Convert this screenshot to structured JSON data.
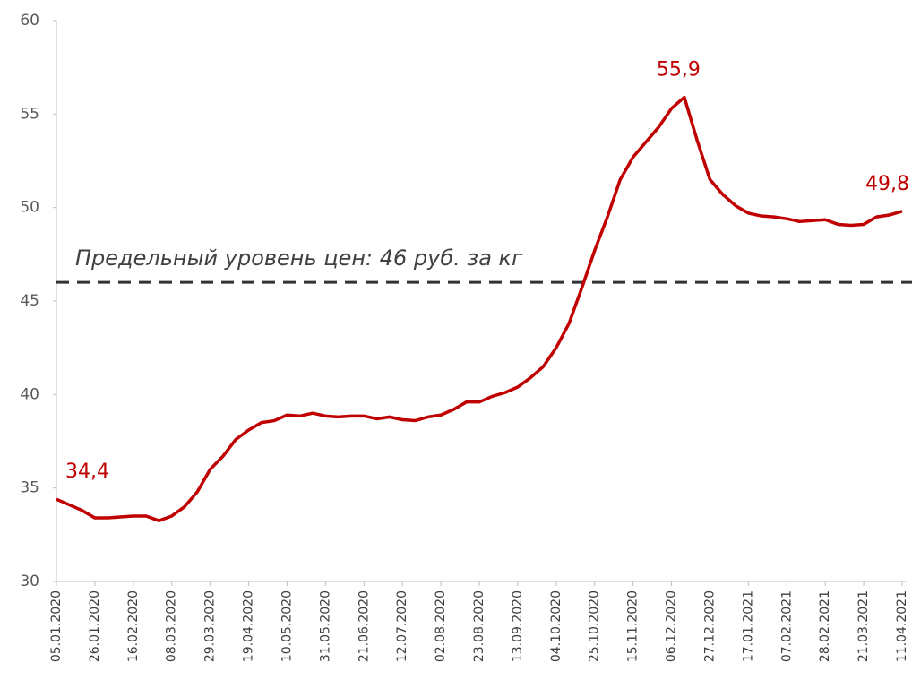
{
  "chart_data": {
    "type": "line",
    "categories": [
      "05.01.2020",
      null,
      null,
      "26.01.2020",
      null,
      null,
      "16.02.2020",
      null,
      null,
      "08.03.2020",
      null,
      null,
      "29.03.2020",
      null,
      null,
      "19.04.2020",
      null,
      null,
      "10.05.2020",
      null,
      null,
      "31.05.2020",
      null,
      null,
      "21.06.2020",
      null,
      null,
      "12.07.2020",
      null,
      null,
      "02.08.2020",
      null,
      null,
      "23.08.2020",
      null,
      null,
      "13.09.2020",
      null,
      null,
      "04.10.2020",
      null,
      null,
      "25.10.2020",
      null,
      null,
      "15.11.2020",
      null,
      null,
      "06.12.2020",
      null,
      null,
      "27.12.2020",
      null,
      null,
      "17.01.2021",
      null,
      null,
      "07.02.2021",
      null,
      null,
      "28.02.2021",
      null,
      null,
      "21.03.2021",
      null,
      null,
      "11.04.2021"
    ],
    "series": [
      {
        "color": "#c00000",
        "values": [
          34.4,
          34.1,
          33.8,
          33.4,
          33.4,
          33.45,
          33.5,
          33.5,
          33.25,
          33.5,
          34.0,
          34.8,
          36.0,
          36.7,
          37.6,
          38.1,
          38.5,
          38.6,
          38.9,
          38.85,
          39.0,
          38.85,
          38.8,
          38.85,
          38.85,
          38.7,
          38.8,
          38.65,
          38.6,
          38.8,
          38.9,
          39.2,
          39.6,
          39.6,
          39.9,
          40.1,
          40.4,
          40.9,
          41.5,
          42.5,
          43.8,
          45.7,
          47.7,
          49.5,
          51.5,
          52.7,
          53.5,
          54.3,
          55.3,
          55.9,
          53.6,
          51.5,
          50.7,
          50.1,
          49.7,
          49.55,
          49.5,
          49.4,
          49.25,
          49.3,
          49.35,
          49.1,
          49.05,
          49.1,
          49.5,
          49.6,
          49.8
        ],
        "value_labels": [
          "34,4",
          null,
          null,
          null,
          null,
          null,
          null,
          null,
          null,
          null,
          null,
          null,
          null,
          null,
          null,
          null,
          null,
          null,
          null,
          null,
          null,
          null,
          null,
          null,
          null,
          null,
          null,
          null,
          null,
          null,
          null,
          null,
          null,
          null,
          null,
          null,
          null,
          null,
          null,
          null,
          null,
          null,
          null,
          null,
          null,
          null,
          null,
          null,
          null,
          "55,9",
          null,
          null,
          null,
          null,
          null,
          null,
          null,
          null,
          null,
          null,
          null,
          null,
          null,
          null,
          null,
          null,
          "49,8"
        ]
      }
    ],
    "threshold": {
      "value": 46,
      "label": "Предельный уровень цен: 46 руб. за кг",
      "color": "#333333"
    },
    "ylim": [
      30,
      60
    ],
    "yticks": [
      30,
      35,
      40,
      45,
      50,
      55,
      60
    ]
  }
}
